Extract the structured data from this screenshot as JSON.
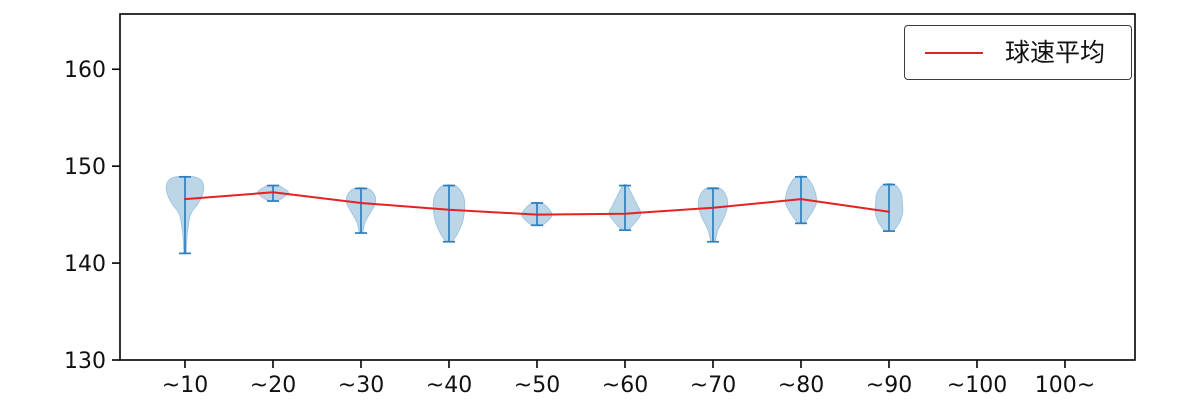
{
  "chart_data": {
    "type": "violin+line",
    "title": "",
    "xlabel": "",
    "ylabel": "",
    "categories": [
      "~10",
      "~20",
      "~30",
      "~40",
      "~50",
      "~60",
      "~70",
      "~80",
      "~90",
      "~100",
      "100~"
    ],
    "ylim": [
      130,
      165.7
    ],
    "yticks": [
      130,
      140,
      150,
      160
    ],
    "grid": false,
    "legend": {
      "label": "球速平均",
      "position": "upper right"
    },
    "colors": {
      "violin_fill": "#bcd6e8",
      "violin_edge": "#9fc6e2",
      "whisker": "#2e7ebc",
      "mean_line": "#e42222",
      "axis": "#000000"
    },
    "series": [
      {
        "category": "~10",
        "min": 141.0,
        "max": 148.9,
        "mean": 146.6,
        "profile": [
          [
            141.0,
            0.05
          ],
          [
            143.0,
            0.1
          ],
          [
            145.0,
            0.25
          ],
          [
            146.0,
            0.55
          ],
          [
            146.8,
            0.75
          ],
          [
            147.7,
            0.85
          ],
          [
            148.5,
            0.75
          ],
          [
            148.9,
            0.4
          ]
        ]
      },
      {
        "category": "~20",
        "min": 146.4,
        "max": 148.0,
        "mean": 147.3,
        "profile": [
          [
            146.4,
            0.2
          ],
          [
            146.9,
            0.55
          ],
          [
            147.3,
            0.7
          ],
          [
            147.7,
            0.5
          ],
          [
            148.0,
            0.22
          ]
        ]
      },
      {
        "category": "~30",
        "min": 143.1,
        "max": 147.7,
        "mean": 146.2,
        "profile": [
          [
            143.1,
            0.08
          ],
          [
            144.2,
            0.18
          ],
          [
            145.3,
            0.45
          ],
          [
            146.2,
            0.65
          ],
          [
            147.0,
            0.62
          ],
          [
            147.7,
            0.3
          ]
        ]
      },
      {
        "category": "~40",
        "min": 142.2,
        "max": 148.0,
        "mean": 145.5,
        "profile": [
          [
            142.2,
            0.15
          ],
          [
            143.2,
            0.42
          ],
          [
            144.3,
            0.62
          ],
          [
            145.4,
            0.7
          ],
          [
            146.5,
            0.7
          ],
          [
            147.4,
            0.55
          ],
          [
            148.0,
            0.25
          ]
        ]
      },
      {
        "category": "~50",
        "min": 143.9,
        "max": 146.2,
        "mean": 145.0,
        "profile": [
          [
            143.9,
            0.25
          ],
          [
            144.5,
            0.55
          ],
          [
            145.0,
            0.68
          ],
          [
            145.7,
            0.5
          ],
          [
            146.2,
            0.2
          ]
        ]
      },
      {
        "category": "~60",
        "min": 143.4,
        "max": 148.0,
        "mean": 145.1,
        "profile": [
          [
            143.4,
            0.15
          ],
          [
            144.3,
            0.5
          ],
          [
            145.1,
            0.72
          ],
          [
            146.0,
            0.55
          ],
          [
            147.0,
            0.33
          ],
          [
            148.0,
            0.1
          ]
        ]
      },
      {
        "category": "~70",
        "min": 142.2,
        "max": 147.7,
        "mean": 145.7,
        "profile": [
          [
            142.2,
            0.1
          ],
          [
            143.4,
            0.22
          ],
          [
            144.7,
            0.5
          ],
          [
            145.8,
            0.65
          ],
          [
            146.8,
            0.62
          ],
          [
            147.7,
            0.32
          ]
        ]
      },
      {
        "category": "~80",
        "min": 144.1,
        "max": 148.9,
        "mean": 146.6,
        "profile": [
          [
            144.1,
            0.15
          ],
          [
            145.2,
            0.48
          ],
          [
            146.2,
            0.7
          ],
          [
            147.2,
            0.66
          ],
          [
            148.2,
            0.48
          ],
          [
            148.9,
            0.2
          ]
        ]
      },
      {
        "category": "~90",
        "min": 143.3,
        "max": 148.1,
        "mean": 145.3,
        "profile": [
          [
            143.3,
            0.2
          ],
          [
            144.3,
            0.5
          ],
          [
            145.3,
            0.62
          ],
          [
            146.3,
            0.6
          ],
          [
            147.2,
            0.55
          ],
          [
            148.1,
            0.25
          ]
        ]
      }
    ]
  }
}
